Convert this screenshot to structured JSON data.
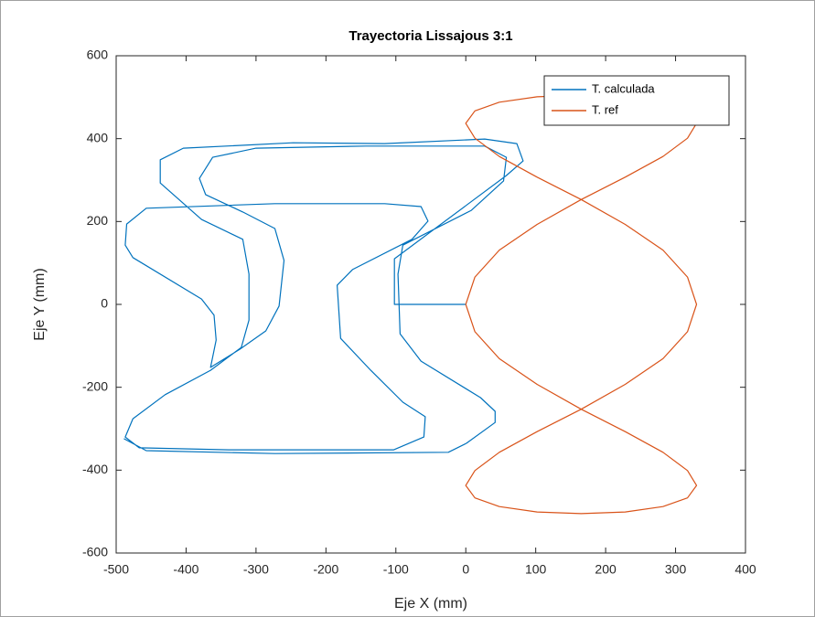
{
  "chart_data": {
    "type": "line",
    "title": "Trayectoria Lissajous 3:1",
    "x_label": "Eje X (mm)",
    "y_label": "Eje Y (mm)",
    "xlim": [
      -500,
      400
    ],
    "xticks": [
      -500,
      -400,
      -300,
      -200,
      -100,
      0,
      100,
      200,
      300,
      400
    ],
    "ylim": [
      -600,
      600
    ],
    "yticks": [
      -600,
      -400,
      -200,
      0,
      200,
      400,
      600
    ],
    "grid": false,
    "legend": "upper-right",
    "series": [
      {
        "name": "T. calculada",
        "color": "#0072bd",
        "x": [
          0,
          -102,
          -102,
          58,
          82,
          73,
          27,
          -116,
          -247,
          -404,
          -437,
          -437,
          -378,
          -319,
          -310,
          -310,
          -321,
          -365,
          -430,
          -476,
          -487,
          -467,
          -339,
          -103,
          -60,
          -58,
          -90,
          -136,
          -179,
          -184,
          -162,
          -77,
          -54,
          -64,
          -116,
          -273,
          -457,
          -485,
          -487,
          -476,
          -378,
          -360,
          -357,
          -365,
          -323,
          -286,
          -267,
          -260,
          -273,
          -319,
          -372,
          -381,
          -362,
          -300,
          -143,
          27,
          58,
          54,
          8,
          -90,
          -97,
          -94,
          -64,
          21,
          42,
          42,
          1,
          -25,
          -273,
          -457,
          -489
        ],
        "values": [
          0,
          0,
          110,
          311,
          346,
          388,
          399,
          388,
          390,
          377,
          349,
          293,
          205,
          157,
          73,
          -38,
          -104,
          -159,
          -218,
          -276,
          -320,
          -346,
          -351,
          -351,
          -320,
          -271,
          -236,
          -159,
          -82,
          46,
          84,
          157,
          201,
          236,
          243,
          243,
          232,
          194,
          143,
          113,
          13,
          -26,
          -86,
          -152,
          -108,
          -64,
          -4,
          106,
          183,
          223,
          265,
          304,
          355,
          377,
          382,
          382,
          355,
          298,
          227,
          143,
          73,
          -71,
          -137,
          -225,
          -258,
          -285,
          -335,
          -357,
          -360,
          -353,
          -324
        ]
      },
      {
        "name": "T. ref",
        "color": "#d95319",
        "x": [
          0,
          13,
          48,
          102,
          165,
          228,
          282,
          317,
          330,
          317,
          282,
          228,
          165,
          102,
          48,
          13,
          0,
          13,
          48,
          102,
          165,
          228,
          282,
          317,
          330,
          317,
          282,
          228,
          165,
          102,
          48,
          13,
          0,
          13,
          48,
          102,
          165,
          228,
          282,
          317,
          330,
          317,
          282,
          228,
          165,
          102,
          48,
          13,
          0
        ],
        "values": [
          0,
          66,
          131,
          193,
          253,
          307,
          357,
          401,
          437,
          467,
          488,
          501,
          505,
          501,
          488,
          467,
          437,
          401,
          357,
          307,
          253,
          193,
          131,
          66,
          0,
          -66,
          -131,
          -193,
          -253,
          -307,
          -357,
          -401,
          -437,
          -467,
          -488,
          -501,
          -505,
          -501,
          -488,
          -467,
          -437,
          -401,
          -357,
          -307,
          -253,
          -193,
          -131,
          -66,
          0
        ]
      }
    ]
  }
}
